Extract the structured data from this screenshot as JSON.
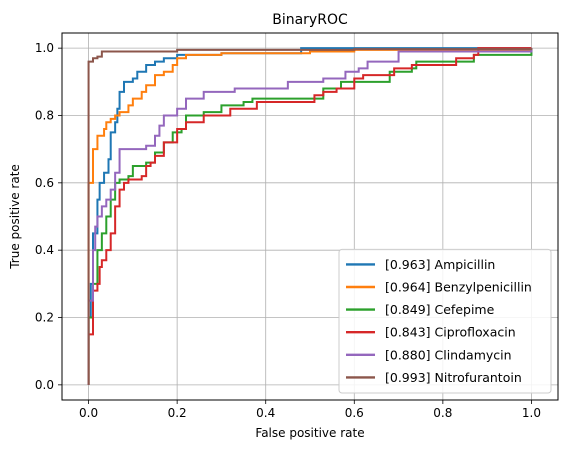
{
  "chart_data": {
    "type": "line",
    "title": "BinaryROC",
    "xlabel": "False positive rate",
    "ylabel": "True positive rate",
    "xlim": [
      -0.06,
      1.06
    ],
    "ylim": [
      -0.045,
      1.045
    ],
    "xticks": [
      0.0,
      0.2,
      0.4,
      0.6,
      0.8,
      1.0
    ],
    "yticks": [
      0.0,
      0.2,
      0.4,
      0.6,
      0.8,
      1.0
    ],
    "xtick_labels": [
      "0.0",
      "0.2",
      "0.4",
      "0.6",
      "0.8",
      "1.0"
    ],
    "ytick_labels": [
      "0.0",
      "0.2",
      "0.4",
      "0.6",
      "0.8",
      "1.0"
    ],
    "grid": true,
    "legend_position": "bottom-right",
    "series": [
      {
        "name": "[0.963] Ampicillin",
        "color": "#1f77b4",
        "points": [
          [
            0.0,
            0.0
          ],
          [
            0.0,
            0.2
          ],
          [
            0.005,
            0.3
          ],
          [
            0.01,
            0.45
          ],
          [
            0.02,
            0.55
          ],
          [
            0.025,
            0.6
          ],
          [
            0.035,
            0.63
          ],
          [
            0.045,
            0.67
          ],
          [
            0.05,
            0.75
          ],
          [
            0.06,
            0.78
          ],
          [
            0.065,
            0.82
          ],
          [
            0.07,
            0.87
          ],
          [
            0.08,
            0.9
          ],
          [
            0.1,
            0.91
          ],
          [
            0.11,
            0.93
          ],
          [
            0.13,
            0.95
          ],
          [
            0.15,
            0.96
          ],
          [
            0.17,
            0.97
          ],
          [
            0.2,
            0.98
          ],
          [
            0.3,
            0.985
          ],
          [
            0.48,
            0.99
          ],
          [
            0.48,
            1.0
          ],
          [
            0.7,
            1.0
          ],
          [
            1.0,
            1.0
          ]
        ]
      },
      {
        "name": "[0.964] Benzylpenicillin",
        "color": "#ff7f0e",
        "points": [
          [
            0.0,
            0.0
          ],
          [
            0.0,
            0.6
          ],
          [
            0.01,
            0.7
          ],
          [
            0.02,
            0.74
          ],
          [
            0.035,
            0.76
          ],
          [
            0.04,
            0.78
          ],
          [
            0.05,
            0.79
          ],
          [
            0.06,
            0.8
          ],
          [
            0.07,
            0.81
          ],
          [
            0.09,
            0.83
          ],
          [
            0.1,
            0.85
          ],
          [
            0.12,
            0.87
          ],
          [
            0.13,
            0.89
          ],
          [
            0.15,
            0.92
          ],
          [
            0.17,
            0.93
          ],
          [
            0.19,
            0.95
          ],
          [
            0.2,
            0.97
          ],
          [
            0.22,
            0.98
          ],
          [
            0.3,
            0.985
          ],
          [
            0.5,
            0.99
          ],
          [
            0.6,
            0.995
          ],
          [
            1.0,
            1.0
          ]
        ]
      },
      {
        "name": "[0.849] Cefepime",
        "color": "#2ca02c",
        "points": [
          [
            0.0,
            0.0
          ],
          [
            0.0,
            0.2
          ],
          [
            0.01,
            0.3
          ],
          [
            0.02,
            0.4
          ],
          [
            0.03,
            0.45
          ],
          [
            0.04,
            0.5
          ],
          [
            0.05,
            0.55
          ],
          [
            0.06,
            0.6
          ],
          [
            0.07,
            0.61
          ],
          [
            0.09,
            0.62
          ],
          [
            0.1,
            0.65
          ],
          [
            0.13,
            0.66
          ],
          [
            0.15,
            0.69
          ],
          [
            0.17,
            0.72
          ],
          [
            0.19,
            0.75
          ],
          [
            0.21,
            0.76
          ],
          [
            0.22,
            0.8
          ],
          [
            0.26,
            0.81
          ],
          [
            0.3,
            0.83
          ],
          [
            0.35,
            0.84
          ],
          [
            0.37,
            0.85
          ],
          [
            0.53,
            0.85
          ],
          [
            0.53,
            0.88
          ],
          [
            0.57,
            0.88
          ],
          [
            0.57,
            0.9
          ],
          [
            0.63,
            0.9
          ],
          [
            0.68,
            0.93
          ],
          [
            0.73,
            0.94
          ],
          [
            0.74,
            0.96
          ],
          [
            0.8,
            0.96
          ],
          [
            0.87,
            0.98
          ],
          [
            1.0,
            1.0
          ]
        ]
      },
      {
        "name": "[0.843] Ciprofloxacin",
        "color": "#d62728",
        "points": [
          [
            0.0,
            0.0
          ],
          [
            0.0,
            0.15
          ],
          [
            0.01,
            0.28
          ],
          [
            0.02,
            0.3
          ],
          [
            0.025,
            0.35
          ],
          [
            0.03,
            0.37
          ],
          [
            0.04,
            0.4
          ],
          [
            0.05,
            0.45
          ],
          [
            0.06,
            0.53
          ],
          [
            0.07,
            0.58
          ],
          [
            0.08,
            0.6
          ],
          [
            0.09,
            0.61
          ],
          [
            0.12,
            0.62
          ],
          [
            0.13,
            0.65
          ],
          [
            0.14,
            0.66
          ],
          [
            0.15,
            0.68
          ],
          [
            0.17,
            0.72
          ],
          [
            0.2,
            0.76
          ],
          [
            0.22,
            0.78
          ],
          [
            0.26,
            0.8
          ],
          [
            0.32,
            0.82
          ],
          [
            0.38,
            0.84
          ],
          [
            0.48,
            0.84
          ],
          [
            0.51,
            0.86
          ],
          [
            0.53,
            0.87
          ],
          [
            0.56,
            0.88
          ],
          [
            0.6,
            0.91
          ],
          [
            0.62,
            0.92
          ],
          [
            0.69,
            0.94
          ],
          [
            0.73,
            0.95
          ],
          [
            0.83,
            0.97
          ],
          [
            0.87,
            0.98
          ],
          [
            0.88,
            1.0
          ],
          [
            1.0,
            1.0
          ]
        ]
      },
      {
        "name": "[0.880] Clindamycin",
        "color": "#9467bd",
        "points": [
          [
            0.0,
            0.0
          ],
          [
            0.0,
            0.25
          ],
          [
            0.01,
            0.4
          ],
          [
            0.015,
            0.47
          ],
          [
            0.02,
            0.5
          ],
          [
            0.03,
            0.53
          ],
          [
            0.04,
            0.55
          ],
          [
            0.05,
            0.58
          ],
          [
            0.06,
            0.63
          ],
          [
            0.07,
            0.7
          ],
          [
            0.13,
            0.71
          ],
          [
            0.15,
            0.74
          ],
          [
            0.16,
            0.77
          ],
          [
            0.17,
            0.8
          ],
          [
            0.2,
            0.82
          ],
          [
            0.22,
            0.85
          ],
          [
            0.26,
            0.87
          ],
          [
            0.33,
            0.88
          ],
          [
            0.45,
            0.9
          ],
          [
            0.53,
            0.91
          ],
          [
            0.58,
            0.93
          ],
          [
            0.61,
            0.94
          ],
          [
            0.63,
            0.96
          ],
          [
            0.7,
            0.99
          ],
          [
            1.0,
            1.0
          ]
        ]
      },
      {
        "name": "[0.993] Nitrofurantoin",
        "color": "#8c564b",
        "points": [
          [
            0.0,
            0.0
          ],
          [
            0.0,
            0.96
          ],
          [
            0.01,
            0.97
          ],
          [
            0.02,
            0.975
          ],
          [
            0.03,
            0.99
          ],
          [
            0.1,
            0.99
          ],
          [
            0.2,
            0.995
          ],
          [
            0.6,
            0.997
          ],
          [
            1.0,
            1.0
          ]
        ]
      }
    ]
  }
}
